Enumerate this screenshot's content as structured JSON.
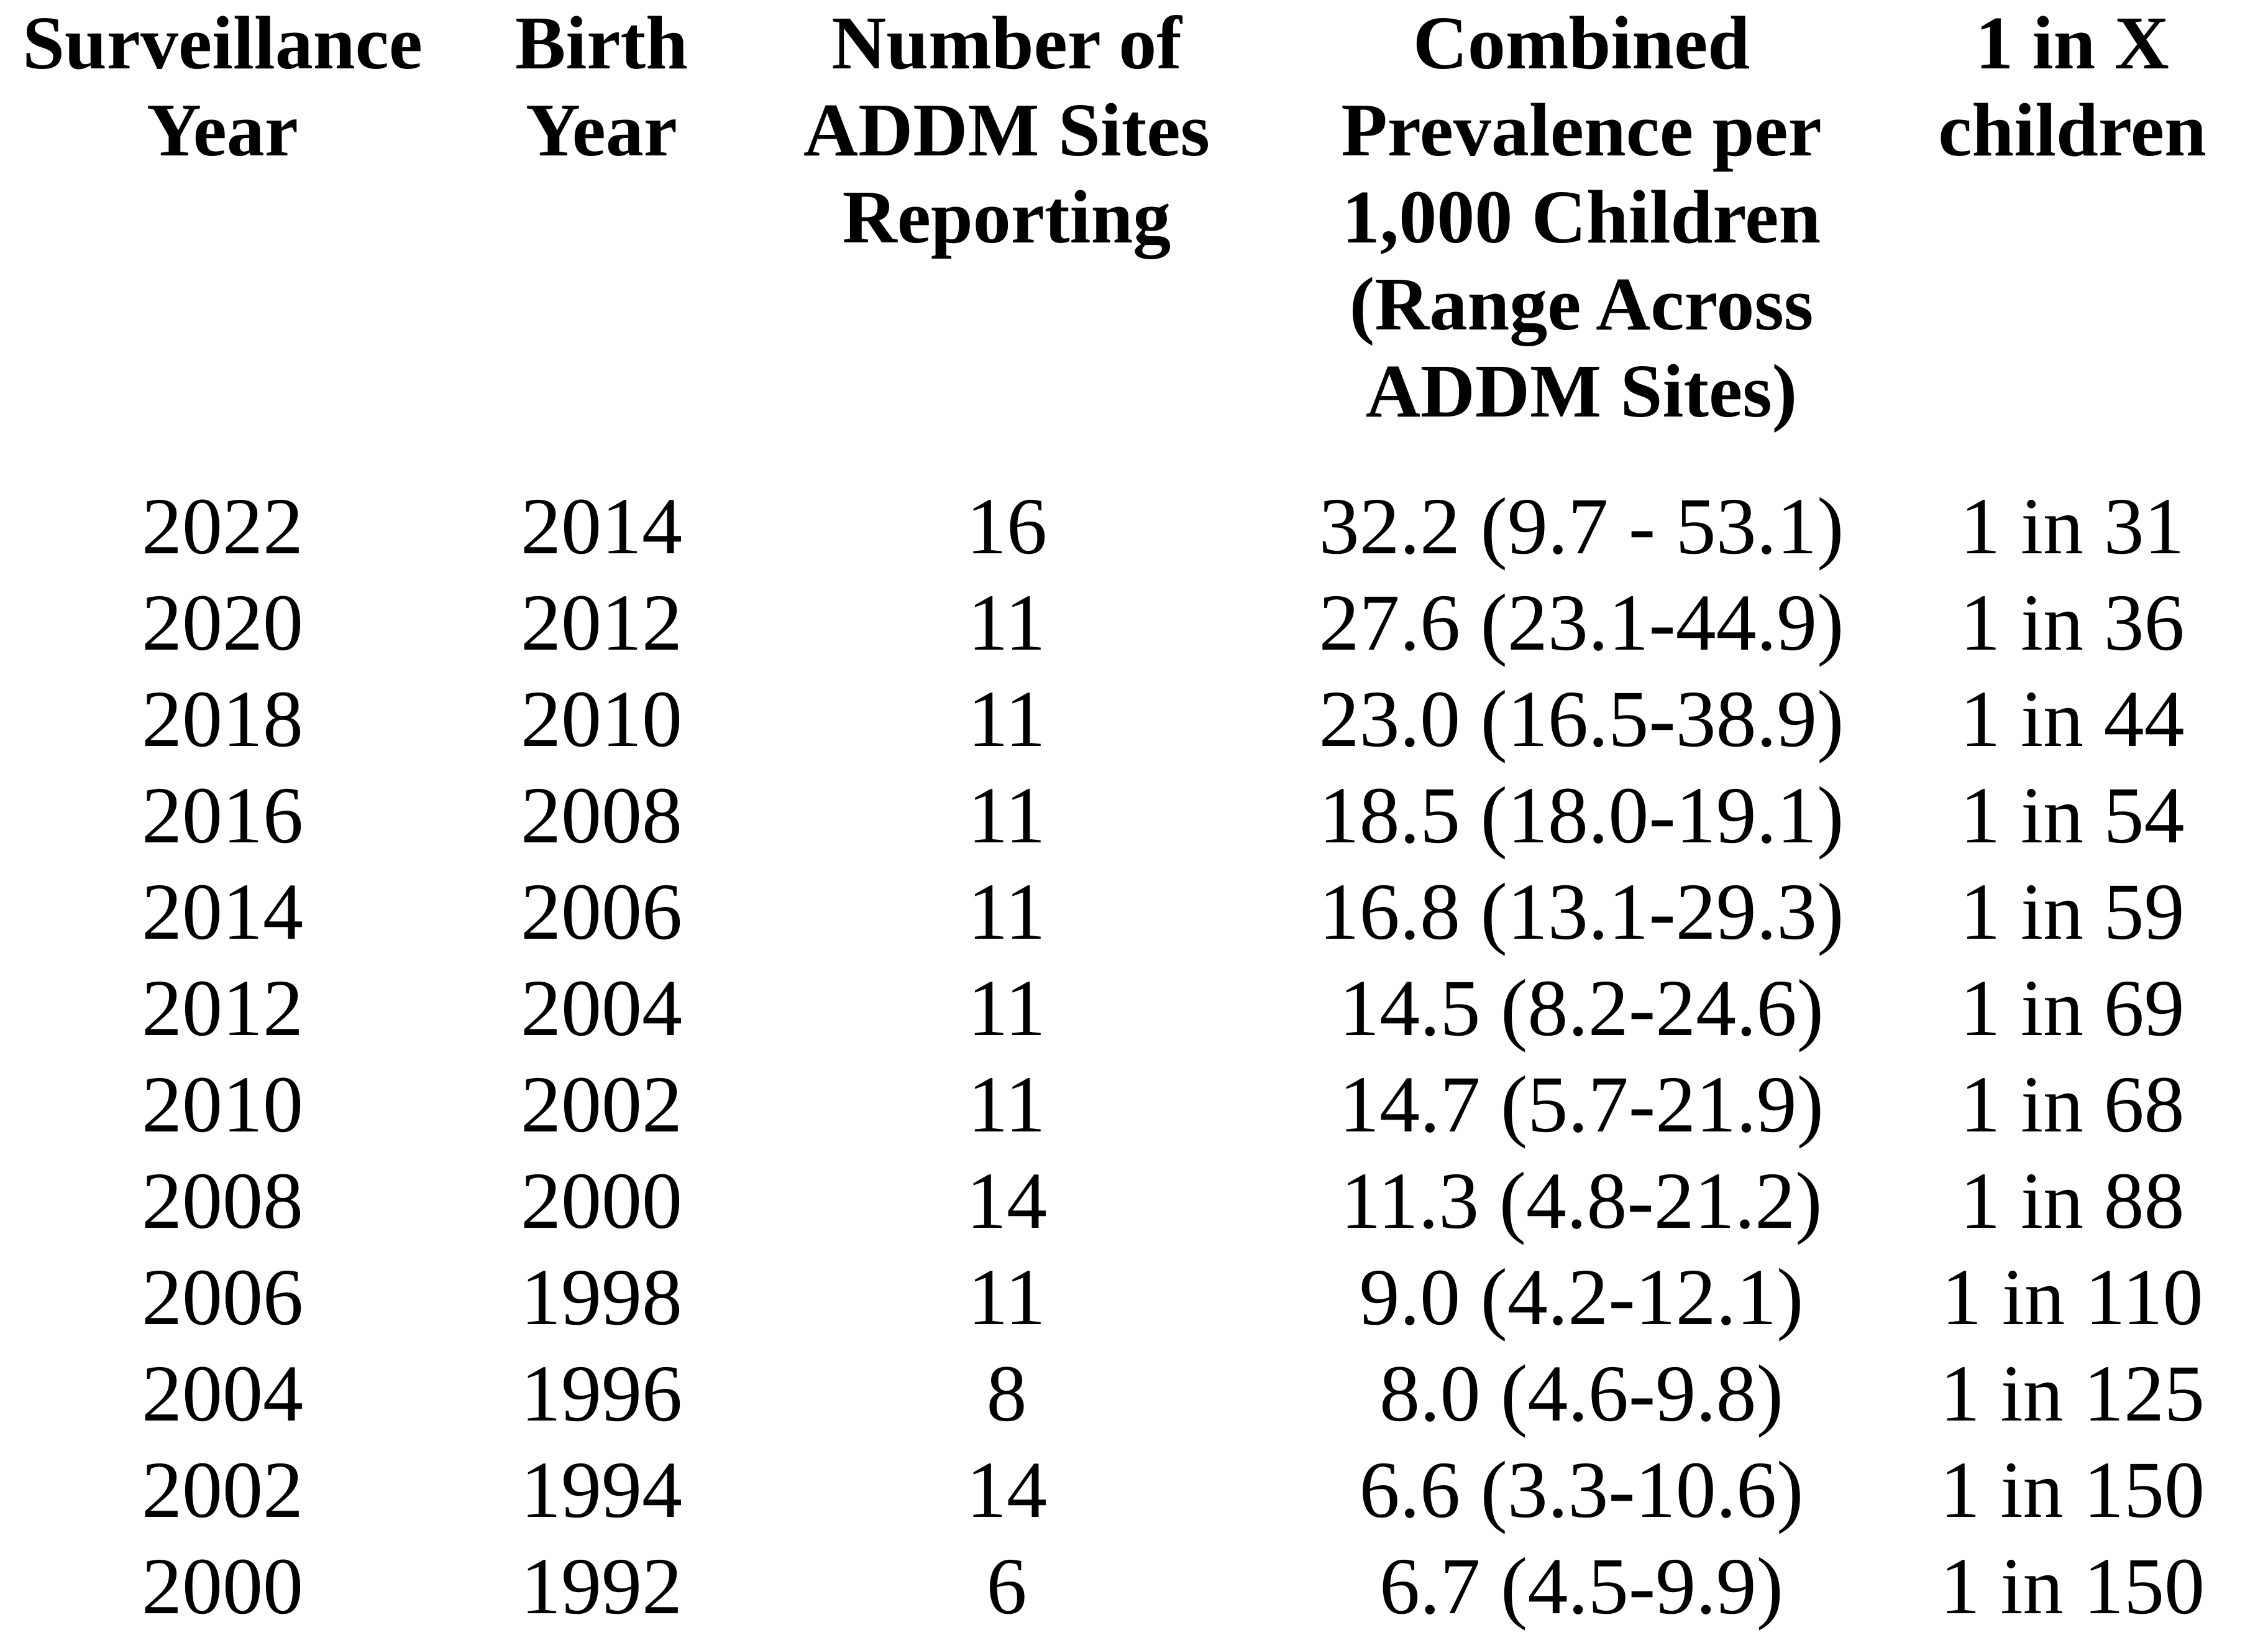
{
  "page": {
    "background_color": "#ffffff",
    "text_color": "#000000",
    "description": "ADDM Network autism prevalence summary table"
  },
  "table": {
    "headers": [
      {
        "id": "surveillance-year",
        "lines": [
          "Surveillance",
          "Year"
        ]
      },
      {
        "id": "birth-year",
        "lines": [
          "Birth",
          "Year"
        ]
      },
      {
        "id": "number-of-addm-sites",
        "lines": [
          "Number of",
          "ADDM Sites",
          "Reporting"
        ]
      },
      {
        "id": "combined-prevalence",
        "lines": [
          "Combined",
          "Prevalence per",
          "1,000 Children",
          "(Range Across",
          "ADDM Sites)"
        ]
      },
      {
        "id": "one-in-x-children",
        "lines": [
          "1 in X",
          "children"
        ]
      }
    ],
    "rows": [
      [
        "2022",
        "2014",
        "16",
        "32.2 (9.7 - 53.1)",
        "1 in 31"
      ],
      [
        "2020",
        "2012",
        "11",
        "27.6 (23.1-44.9)",
        "1 in 36"
      ],
      [
        "2018",
        "2010",
        "11",
        "23.0 (16.5-38.9)",
        "1 in 44"
      ],
      [
        "2016",
        "2008",
        "11",
        "18.5 (18.0-19.1)",
        "1 in 54"
      ],
      [
        "2014",
        "2006",
        "11",
        "16.8 (13.1-29.3)",
        "1 in 59"
      ],
      [
        "2012",
        "2004",
        "11",
        "14.5 (8.2-24.6)",
        "1 in 69"
      ],
      [
        "2010",
        "2002",
        "11",
        "14.7 (5.7-21.9)",
        "1 in 68"
      ],
      [
        "2008",
        "2000",
        "14",
        "11.3 (4.8-21.2)",
        "1 in 88"
      ],
      [
        "2006",
        "1998",
        "11",
        "9.0 (4.2-12.1)",
        "1 in 110"
      ],
      [
        "2004",
        "1996",
        "8",
        "8.0 (4.6-9.8)",
        "1 in 125"
      ],
      [
        "2002",
        "1994",
        "14",
        "6.6 (3.3-10.6)",
        "1 in 150"
      ],
      [
        "2000",
        "1992",
        "6",
        "6.7 (4.5-9.9)",
        "1 in 150"
      ]
    ]
  }
}
